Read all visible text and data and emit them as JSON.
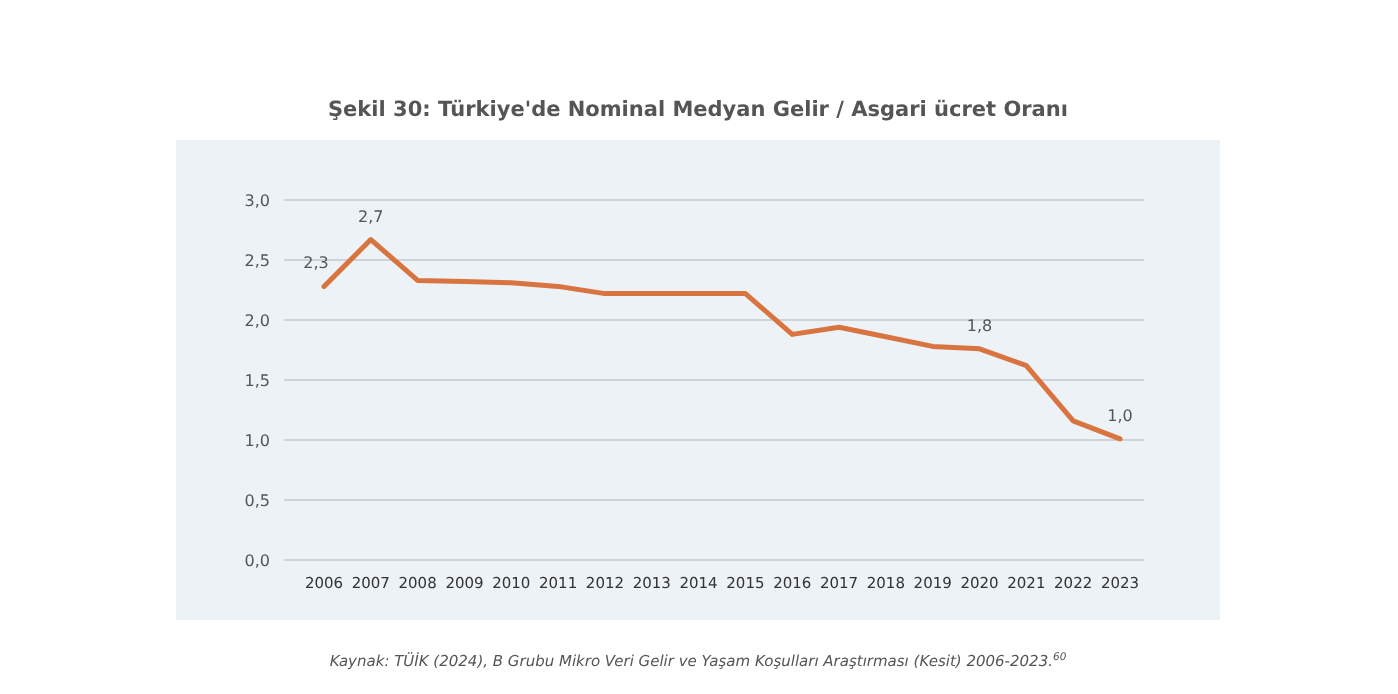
{
  "chart_data": {
    "type": "line",
    "title": "Şekil 30: Türkiye'de Nominal Medyan Gelir / Asgari ücret Oranı",
    "categories": [
      "2006",
      "2007",
      "2008",
      "2009",
      "2010",
      "2011",
      "2012",
      "2013",
      "2014",
      "2015",
      "2016",
      "2017",
      "2018",
      "2019",
      "2020",
      "2021",
      "2022",
      "2023"
    ],
    "series": [
      {
        "color": "#d9733f",
        "values": [
          2.28,
          2.67,
          2.33,
          2.32,
          2.31,
          2.28,
          2.22,
          2.22,
          2.22,
          2.22,
          1.88,
          1.94,
          1.86,
          1.78,
          1.76,
          1.62,
          1.16,
          1.01
        ],
        "value_labels": [
          "2,3",
          "2,7",
          null,
          null,
          null,
          null,
          null,
          null,
          null,
          null,
          null,
          null,
          null,
          null,
          "1,8",
          null,
          null,
          "1,0"
        ]
      }
    ],
    "ylim": [
      0,
      3
    ],
    "yticks": [
      {
        "value": 0,
        "label": "0,0"
      },
      {
        "value": 0.5,
        "label": "0,5"
      },
      {
        "value": 1,
        "label": "1,0"
      },
      {
        "value": 1.5,
        "label": "1,5"
      },
      {
        "value": 2,
        "label": "2,0"
      },
      {
        "value": 2.5,
        "label": "2,5"
      },
      {
        "value": 3,
        "label": "3,0"
      }
    ],
    "grid": "y",
    "marker": "none",
    "line_style": "solid",
    "annotations": [
      "Kaynak: TÜİK (2024), B Grubu Mikro Veri Gelir ve Yaşam Koşulları Araştırması (Kesit) 2006-2023.$^{60}$"
    ]
  }
}
